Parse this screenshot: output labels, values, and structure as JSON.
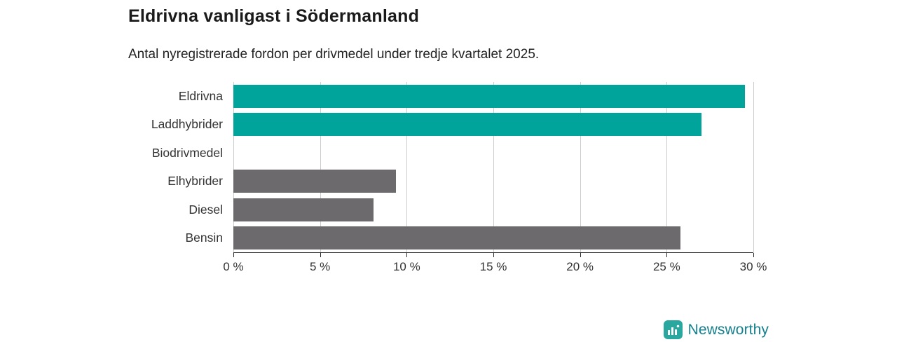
{
  "header": {
    "title": "Eldrivna vanligast i Södermanland",
    "subtitle": "Antal nyregistrerade fordon per drivmedel under tredje kvartalet 2025."
  },
  "chart_data": {
    "type": "bar",
    "orientation": "horizontal",
    "title": "Eldrivna vanligast i Södermanland",
    "subtitle": "Antal nyregistrerade fordon per drivmedel under tredje kvartalet 2025.",
    "categories": [
      "Eldrivna",
      "Laddhybrider",
      "Biodrivmedel",
      "Elhybrider",
      "Diesel",
      "Bensin"
    ],
    "values": [
      29.5,
      27.0,
      0,
      9.4,
      8.1,
      25.8
    ],
    "bar_colors": [
      "#00a49a",
      "#00a49a",
      "#6d6a6d",
      "#6d6a6d",
      "#6d6a6d",
      "#6d6a6d"
    ],
    "highlight_color": "#00a49a",
    "default_color": "#6d6a6d",
    "xlabel": "",
    "ylabel": "",
    "xlim": [
      0,
      30
    ],
    "x_ticks": [
      0,
      5,
      10,
      15,
      20,
      25,
      30
    ],
    "x_tick_labels": [
      "0 %",
      "5 %",
      "10 %",
      "15 %",
      "20 %",
      "25 %",
      "30 %"
    ],
    "grid": true,
    "grid_color": "#cccccc",
    "legend": false
  },
  "footer": {
    "brand": "Newsworthy",
    "brand_text_color": "#16808d",
    "brand_icon_color": "#2aa79e"
  }
}
